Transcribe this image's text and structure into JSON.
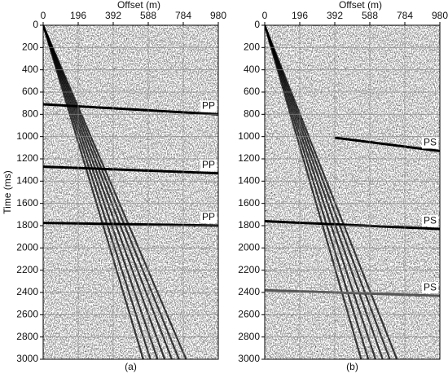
{
  "chart_data": [
    {
      "type": "seismic",
      "xlabel": "Offset (m)",
      "ylabel": "Time (ms)",
      "panel_label": "(a)",
      "xlim": [
        0,
        980
      ],
      "ylim": [
        0,
        3000
      ],
      "y_inverted": true,
      "grid": true,
      "xticks": [
        0,
        196,
        392,
        588,
        784,
        980
      ],
      "yticks": [
        0,
        200,
        400,
        600,
        800,
        1000,
        1200,
        1400,
        1600,
        1800,
        2000,
        2200,
        2400,
        2600,
        2800,
        3000
      ],
      "series": [
        {
          "name": "PP",
          "color": "#000000",
          "x": [
            0,
            980
          ],
          "values": [
            710,
            800
          ]
        },
        {
          "name": "PP",
          "color": "#000000",
          "x": [
            0,
            980
          ],
          "values": [
            1270,
            1330
          ]
        },
        {
          "name": "PP",
          "color": "#000000",
          "x": [
            0,
            980
          ],
          "values": [
            1775,
            1800
          ]
        }
      ],
      "linear_events": [
        {
          "color": "#000000",
          "x": [
            0,
            560
          ],
          "values": [
            0,
            3000
          ]
        },
        {
          "color": "#000000",
          "x": [
            0,
            600
          ],
          "values": [
            0,
            3000
          ]
        },
        {
          "color": "#000000",
          "x": [
            0,
            640
          ],
          "values": [
            0,
            3000
          ]
        },
        {
          "color": "#000000",
          "x": [
            0,
            680
          ],
          "values": [
            0,
            3000
          ]
        },
        {
          "color": "#000000",
          "x": [
            0,
            720
          ],
          "values": [
            0,
            3000
          ]
        },
        {
          "color": "#000000",
          "x": [
            0,
            760
          ],
          "values": [
            0,
            3000
          ]
        },
        {
          "color": "#000000",
          "x": [
            0,
            800
          ],
          "values": [
            0,
            3000
          ]
        }
      ]
    },
    {
      "type": "seismic",
      "xlabel": "Offset (m)",
      "panel_label": "(b)",
      "xlim": [
        0,
        980
      ],
      "ylim": [
        0,
        3000
      ],
      "y_inverted": true,
      "grid": true,
      "xticks": [
        0,
        196,
        392,
        588,
        784,
        980
      ],
      "yticks": [
        0,
        200,
        400,
        600,
        800,
        1000,
        1200,
        1400,
        1600,
        1800,
        2000,
        2200,
        2400,
        2600,
        2800,
        3000
      ],
      "series": [
        {
          "name": "PS",
          "color": "#000000",
          "x": [
            392,
            980
          ],
          "values": [
            1010,
            1130
          ]
        },
        {
          "name": "PS",
          "color": "#000000",
          "x": [
            0,
            980
          ],
          "values": [
            1760,
            1830
          ]
        },
        {
          "name": "PS",
          "color": "#555555",
          "x": [
            0,
            980
          ],
          "values": [
            2380,
            2430
          ]
        }
      ],
      "linear_events": [
        {
          "color": "#000000",
          "x": [
            0,
            540
          ],
          "values": [
            0,
            3000
          ]
        },
        {
          "color": "#000000",
          "x": [
            0,
            580
          ],
          "values": [
            0,
            3000
          ]
        },
        {
          "color": "#000000",
          "x": [
            0,
            620
          ],
          "values": [
            0,
            3000
          ]
        },
        {
          "color": "#000000",
          "x": [
            0,
            660
          ],
          "values": [
            0,
            3000
          ]
        },
        {
          "color": "#000000",
          "x": [
            0,
            700
          ],
          "values": [
            0,
            3000
          ]
        },
        {
          "color": "#000000",
          "x": [
            0,
            740
          ],
          "values": [
            0,
            3000
          ]
        }
      ]
    }
  ]
}
